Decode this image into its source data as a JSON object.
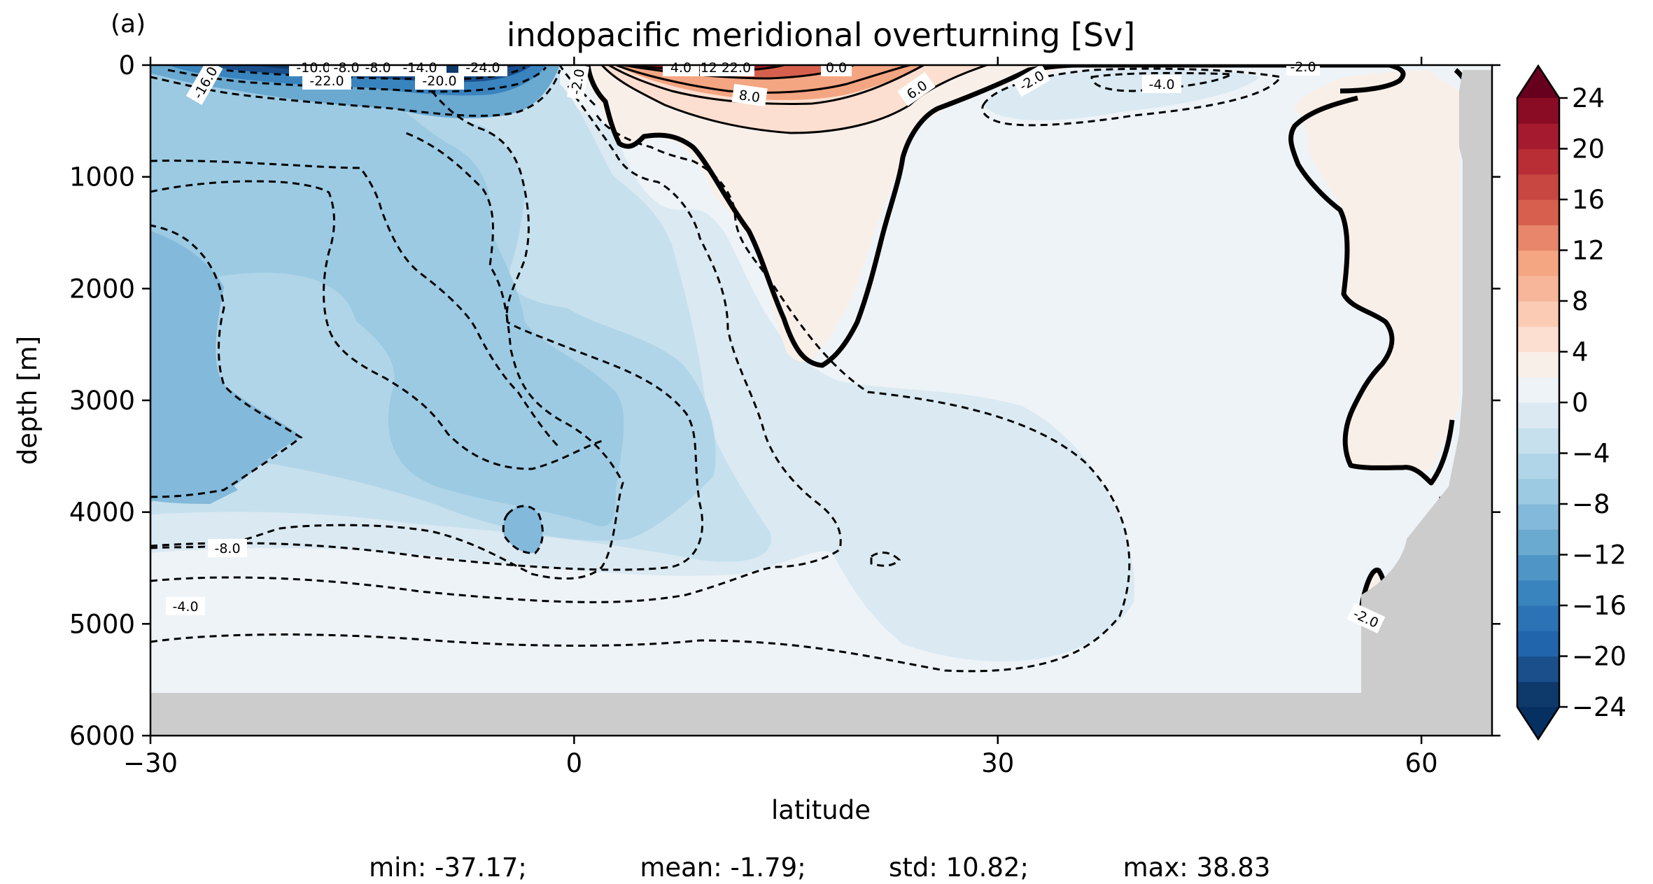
{
  "chart_data": {
    "type": "contour",
    "panel_label": "(a)",
    "title": "indopacific meridional overturning [Sv]",
    "xlabel": "latitude",
    "ylabel": "depth [m]",
    "xlim": [
      -30,
      65
    ],
    "ylim": [
      6000,
      0
    ],
    "x_ticks": [
      -30,
      0,
      30,
      60
    ],
    "x_tick_labels": [
      "−30",
      "0",
      "30",
      "60"
    ],
    "y_ticks": [
      0,
      1000,
      2000,
      3000,
      4000,
      5000,
      6000
    ],
    "y_tick_labels": [
      "0",
      "1000",
      "2000",
      "3000",
      "4000",
      "5000",
      "6000"
    ],
    "colorbar": {
      "levels": [
        -24,
        -22,
        -20,
        -18,
        -16,
        -14,
        -12,
        -10,
        -8,
        -6,
        -4,
        -2,
        0,
        2,
        4,
        6,
        8,
        10,
        12,
        14,
        16,
        18,
        20,
        22,
        24
      ],
      "tick_values": [
        24,
        20,
        16,
        12,
        8,
        4,
        0,
        -4,
        -8,
        -12,
        -16,
        -20,
        -24
      ],
      "tick_labels": [
        "24",
        "20",
        "16",
        "12",
        "8",
        "4",
        "0",
        "−4",
        "−8",
        "−12",
        "−16",
        "−20",
        "−24"
      ],
      "extend": "both",
      "colors": [
        "#0d3a6b",
        "#1a4f8c",
        "#2166ac",
        "#2b73b5",
        "#3984bf",
        "#4f95c6",
        "#6aa9d0",
        "#83b9da",
        "#9ccae3",
        "#b1d5e8",
        "#c6e0ee",
        "#dae9f2",
        "#eef3f7",
        "#f9efe9",
        "#fcdfd0",
        "#fbcbb3",
        "#f7b599",
        "#f4a582",
        "#e7866b",
        "#d6604d",
        "#c94741",
        "#b92d35",
        "#a51a2e",
        "#8a0c24"
      ],
      "over_color": "#67001f",
      "under_color": "#053061"
    },
    "land_color": "#cccccc",
    "contour_labels": [
      "-16.0",
      "-10.0",
      "-8.0",
      "-8.0",
      "-14.0",
      "-24.0",
      "-22.0",
      "-20.0",
      "-2.0",
      "4.0",
      "12.0",
      "22.0",
      "0.0",
      "8.0",
      "6.0",
      "-2.0",
      "-4.0",
      "-2.0",
      "-8.0",
      "-4.0",
      "-2.0"
    ],
    "stats_text": {
      "min": "min: -37.17;",
      "mean": "mean: -1.79;",
      "std": "std: 10.82;",
      "max": "max: 38.83"
    }
  }
}
